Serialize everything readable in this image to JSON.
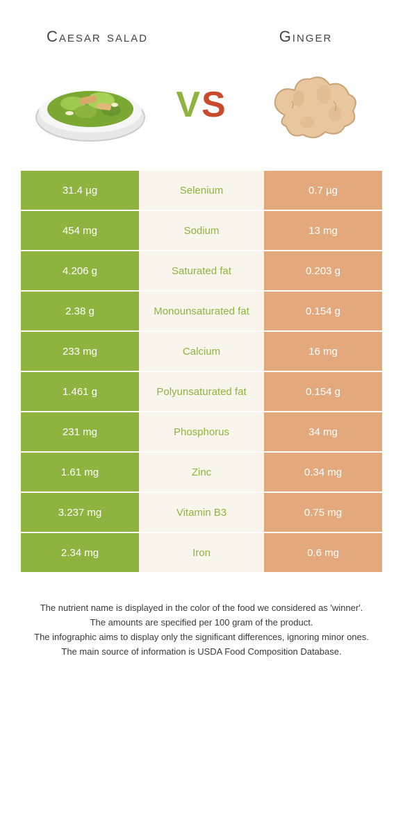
{
  "food_left": {
    "name": "Caesar salad",
    "color": "#8EB43F"
  },
  "food_right": {
    "name": "Ginger",
    "color": "#E3A97C"
  },
  "colors": {
    "left_cell": "#8EB43F",
    "right_cell": "#E3A97C",
    "mid_cell": "#f9f5ec",
    "winner_left_text": "#8EB43F",
    "winner_right_text": "#E3A97C"
  },
  "rows": [
    {
      "left": "31.4 µg",
      "label": "Selenium",
      "right": "0.7 µg",
      "winner": "left"
    },
    {
      "left": "454 mg",
      "label": "Sodium",
      "right": "13 mg",
      "winner": "left"
    },
    {
      "left": "4.206 g",
      "label": "Saturated fat",
      "right": "0.203 g",
      "winner": "left"
    },
    {
      "left": "2.38 g",
      "label": "Monounsaturated fat",
      "right": "0.154 g",
      "winner": "left"
    },
    {
      "left": "233 mg",
      "label": "Calcium",
      "right": "16 mg",
      "winner": "left"
    },
    {
      "left": "1.461 g",
      "label": "Polyunsaturated fat",
      "right": "0.154 g",
      "winner": "left"
    },
    {
      "left": "231 mg",
      "label": "Phosphorus",
      "right": "34 mg",
      "winner": "left"
    },
    {
      "left": "1.61 mg",
      "label": "Zinc",
      "right": "0.34 mg",
      "winner": "left"
    },
    {
      "left": "3.237 mg",
      "label": "Vitamin B3",
      "right": "0.75 mg",
      "winner": "left"
    },
    {
      "left": "2.34 mg",
      "label": "Iron",
      "right": "0.6 mg",
      "winner": "left"
    }
  ],
  "footer": {
    "l1": "The nutrient name is displayed in the color of the food we considered as 'winner'.",
    "l2": "The amounts are specified per 100 gram of the product.",
    "l3": "The infographic aims to display only the significant differences, ignoring minor ones.",
    "l4": "The main source of information is USDA Food Composition Database."
  }
}
